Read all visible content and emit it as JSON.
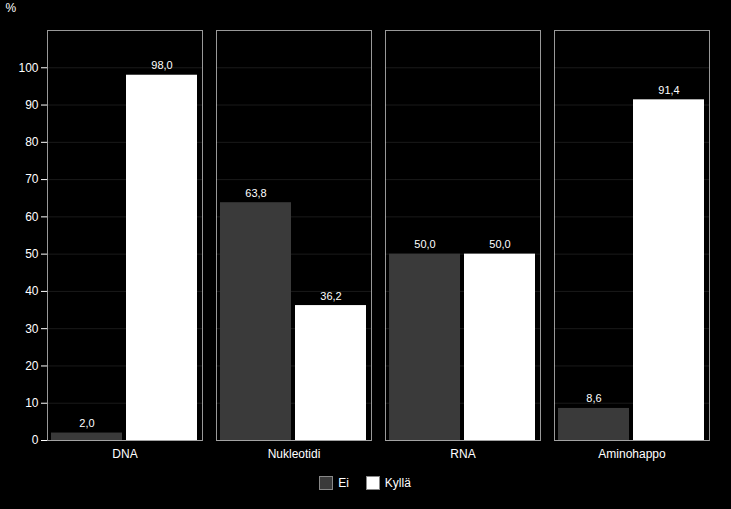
{
  "chart_data": {
    "type": "bar",
    "categories": [
      "DNA",
      "Nukleotidi",
      "RNA",
      "Aminohappo"
    ],
    "series": [
      {
        "name": "Ei",
        "color": "#3a3a3a",
        "values": [
          2.0,
          63.8,
          50.0,
          8.6
        ],
        "value_labels": [
          "2,0",
          "63,8",
          "50,0",
          "8,6"
        ]
      },
      {
        "name": "Kyllä",
        "color": "#ffffff",
        "values": [
          98.0,
          36.2,
          50.0,
          91.4
        ],
        "value_labels": [
          "98,0",
          "36,2",
          "50,0",
          "91,4"
        ]
      }
    ],
    "ylabel": "%",
    "ylim": [
      0,
      110
    ],
    "yticks": [
      0,
      10,
      20,
      30,
      40,
      50,
      60,
      70,
      80,
      90,
      100
    ],
    "grid": true,
    "legend": "bottom",
    "data_labels": true
  }
}
